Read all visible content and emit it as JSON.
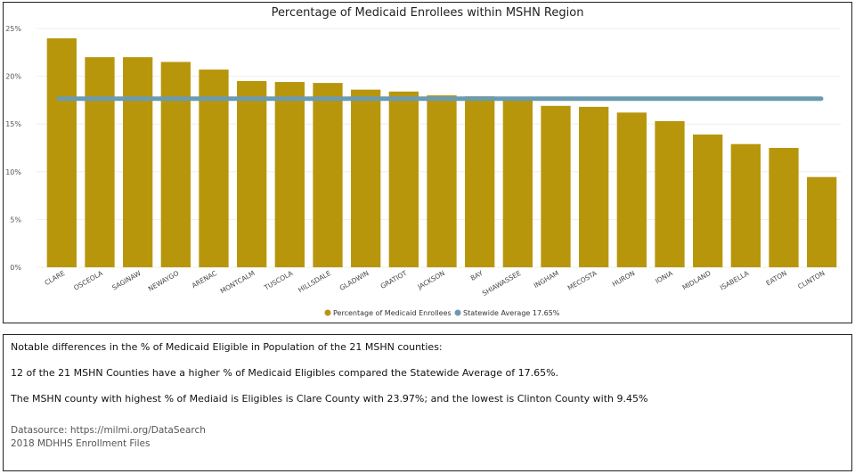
{
  "chart_data": {
    "type": "bar",
    "title": "Percentage of Medicaid Enrollees within MSHN Region",
    "xlabel": "",
    "ylabel": "",
    "ylim": [
      0,
      25
    ],
    "yticks": [
      "0%",
      "5%",
      "10%",
      "15%",
      "20%",
      "25%"
    ],
    "ytick_values": [
      0,
      5,
      10,
      15,
      20,
      25
    ],
    "categories": [
      "CLARE",
      "OSCEOLA",
      "SAGINAW",
      "NEWAYGO",
      "ARENAC",
      "MONTCALM",
      "TUSCOLA",
      "HILLSDALE",
      "GLADWIN",
      "GRATIOT",
      "JACKSON",
      "BAY",
      "SHIAWASSEE",
      "INGHAM",
      "MECOSTA",
      "HURON",
      "IONIA",
      "MIDLAND",
      "ISABELLA",
      "EATON",
      "CLINTON"
    ],
    "series": [
      {
        "name": "Percentage of Medicaid Enrollees",
        "type": "bar",
        "color": "#B8960C",
        "values": [
          23.97,
          22.0,
          22.0,
          21.5,
          20.7,
          19.5,
          19.4,
          19.3,
          18.6,
          18.4,
          18.0,
          17.9,
          17.6,
          16.9,
          16.8,
          16.2,
          15.3,
          13.9,
          12.9,
          12.5,
          9.45
        ]
      },
      {
        "name": "Statewide Average 17.65%",
        "type": "line",
        "color": "#6B9BB0",
        "value": 17.65
      }
    ],
    "legend": "bottom-center"
  },
  "notes": {
    "heading": "Notable differences in the % of Medicaid Eligible in Population of the 21 MSHN counties:",
    "line2": "12 of the 21 MSHN Counties have a higher % of Medicaid Eligibles compared the Statewide Average of 17.65%.",
    "line3": "The MSHN county with highest % of Mediaid is Eligibles is Clare County with 23.97%; and the lowest is Clinton County with 9.45%",
    "source1": "Datasource: https://milmi.org/DataSearch",
    "source2": "2018 MDHHS Enrollment Files"
  }
}
